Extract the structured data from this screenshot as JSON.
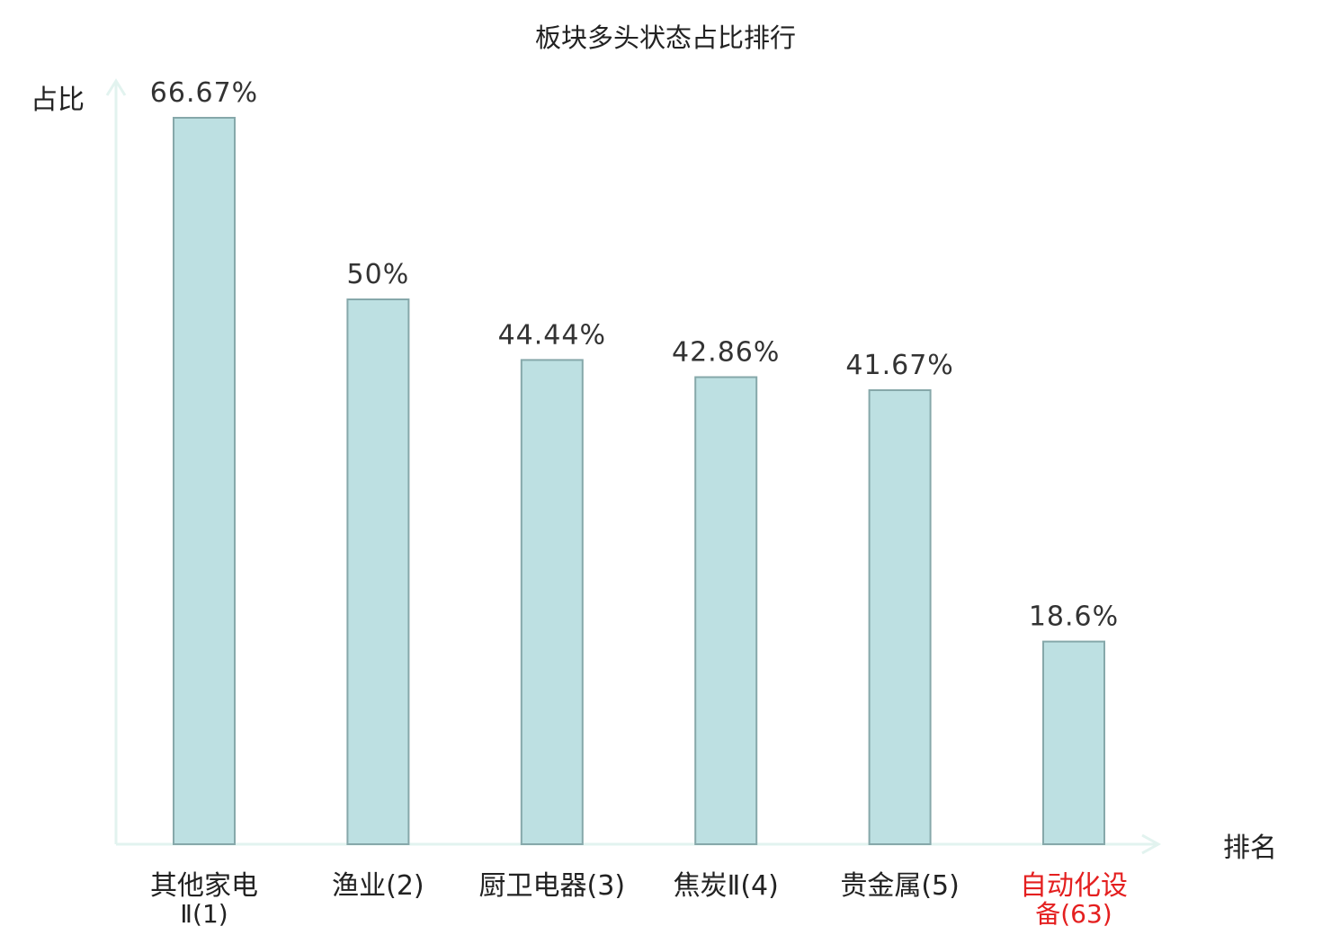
{
  "chart_data": {
    "type": "bar",
    "title": "板块多头状态占比排行",
    "xlabel": "排名",
    "ylabel": "占比",
    "ylim": [
      0,
      70
    ],
    "grid": false,
    "categories": [
      {
        "line1": "其他家电",
        "line2": "Ⅱ(1)",
        "highlight": false
      },
      {
        "line1": "渔业(2)",
        "line2": "",
        "highlight": false
      },
      {
        "line1": "厨卫电器(3)",
        "line2": "",
        "highlight": false
      },
      {
        "line1": "焦炭Ⅱ(4)",
        "line2": "",
        "highlight": false
      },
      {
        "line1": "贵金属(5)",
        "line2": "",
        "highlight": false
      },
      {
        "line1": "自动化设",
        "line2": "备(63)",
        "highlight": true
      }
    ],
    "values": [
      66.67,
      50,
      44.44,
      42.86,
      41.67,
      18.6
    ],
    "value_labels": [
      "66.67%",
      "50%",
      "44.44%",
      "42.86%",
      "41.67%",
      "18.6%"
    ],
    "colors": {
      "bar_fill": "#bde0e2",
      "bar_stroke": "#86a8aa",
      "axis": "#e2f3ef",
      "highlight_text": "#e41f1f",
      "text": "#222222"
    }
  }
}
